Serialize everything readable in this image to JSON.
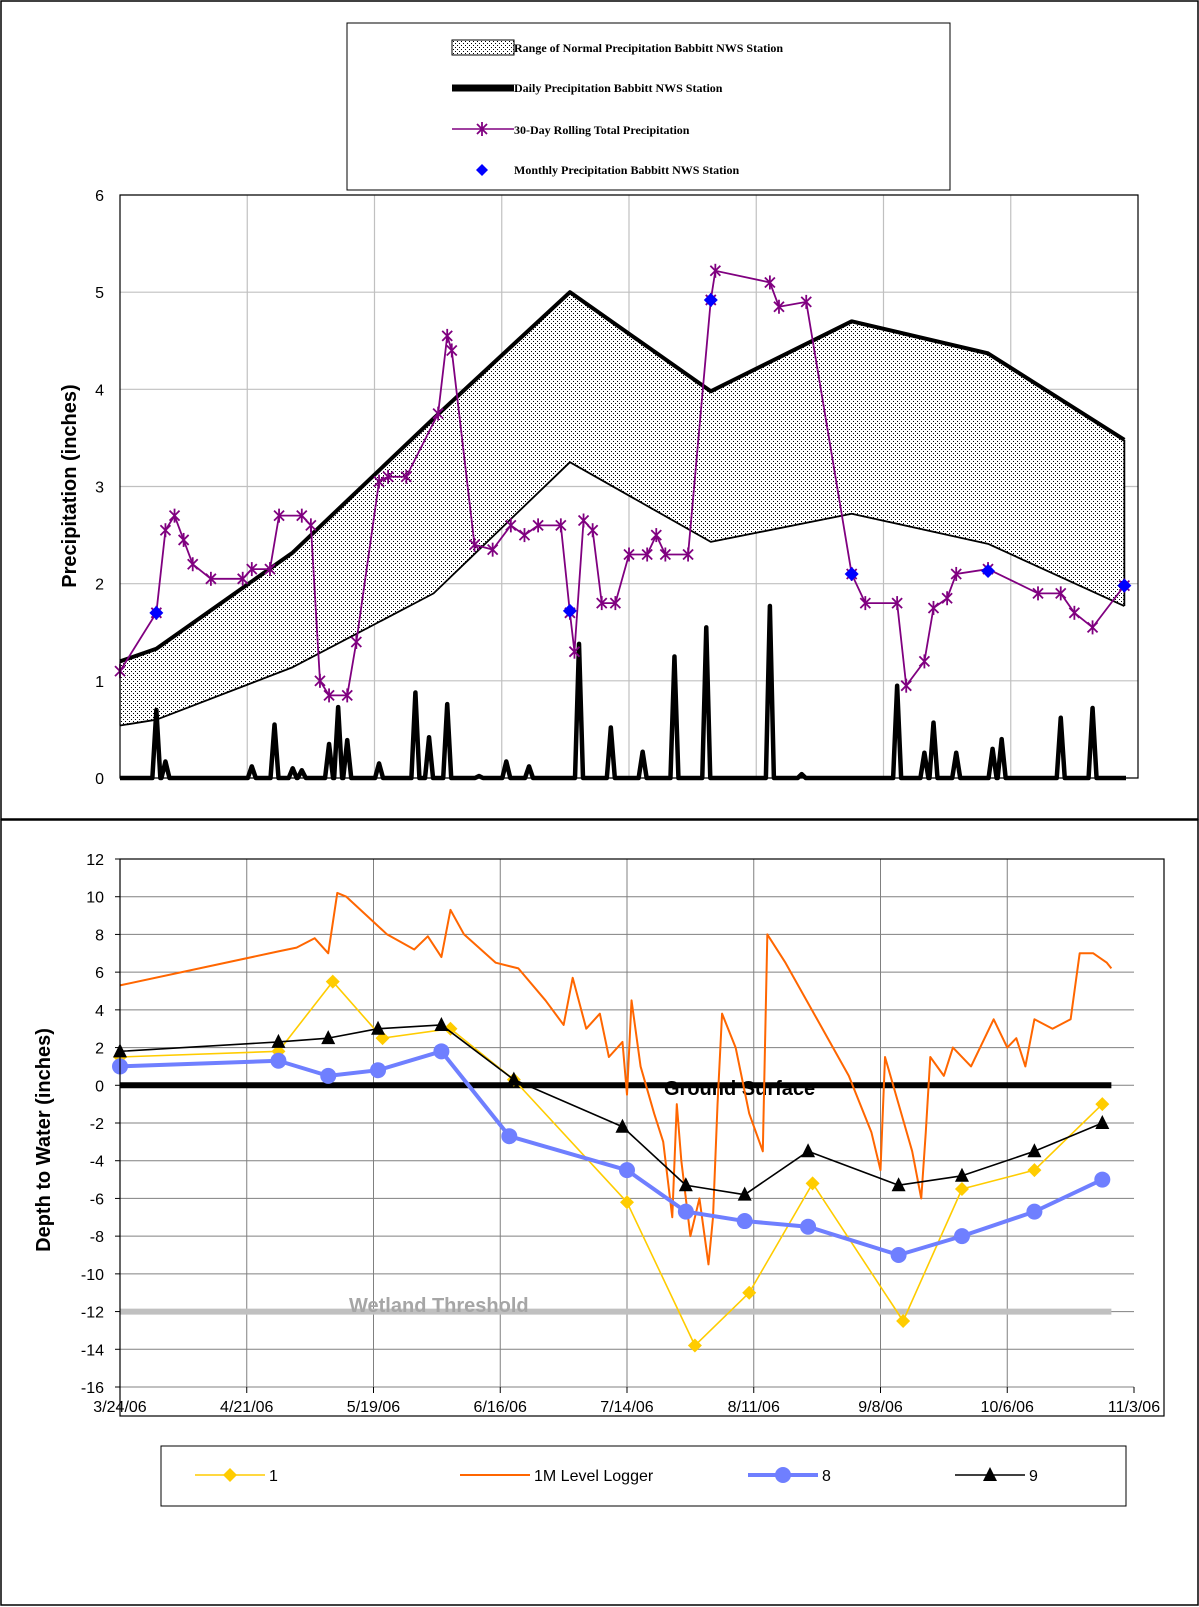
{
  "chart_data": [
    {
      "type": "line",
      "ylabel": "Precipitation (inches)",
      "ylim": [
        0,
        6
      ],
      "yticks": [
        "0",
        "1",
        "2",
        "3",
        "4",
        "5",
        "6"
      ],
      "grid": true,
      "legend_position": "top",
      "legend": [
        {
          "label": "Range of Normal Precipitation Babbitt NWS Station",
          "icon": "dotted-box"
        },
        {
          "label": "Daily Precipitation Babbitt NWS Station",
          "icon": "thick-line"
        },
        {
          "label": "30-Day Rolling Total Precipitation",
          "icon": "star-line"
        },
        {
          "label": "Monthly Precipitation Babbitt NWS Station",
          "icon": "diamond"
        }
      ],
      "colors": {
        "band": "#000000",
        "daily": "#000000",
        "rolling": "#800080",
        "monthly": "#0000ff"
      },
      "x_start": "2006-03-24",
      "x_end": "2006-11-03",
      "normal_range": {
        "x": [
          "2006-03-24",
          "2006-04-01",
          "2006-05-01",
          "2006-06-01",
          "2006-07-01",
          "2006-08-01",
          "2006-09-01",
          "2006-10-01",
          "2006-10-31"
        ],
        "upper": [
          1.2,
          1.33,
          2.32,
          3.7,
          5.0,
          3.98,
          4.7,
          4.37,
          3.48
        ],
        "lower": [
          0.54,
          0.6,
          1.14,
          1.9,
          3.25,
          2.43,
          2.72,
          2.41,
          1.77
        ]
      },
      "daily_precip_series": [
        {
          "x": "2006-04-01",
          "value": 0.7
        },
        {
          "x": "2006-04-03",
          "value": 0.17
        },
        {
          "x": "2006-04-22",
          "value": 0.12
        },
        {
          "x": "2006-04-27",
          "value": 0.55
        },
        {
          "x": "2006-05-01",
          "value": 0.1
        },
        {
          "x": "2006-05-03",
          "value": 0.08
        },
        {
          "x": "2006-05-09",
          "value": 0.35
        },
        {
          "x": "2006-05-11",
          "value": 0.73
        },
        {
          "x": "2006-05-13",
          "value": 0.39
        },
        {
          "x": "2006-05-20",
          "value": 0.15
        },
        {
          "x": "2006-05-28",
          "value": 0.88
        },
        {
          "x": "2006-05-31",
          "value": 0.42
        },
        {
          "x": "2006-06-04",
          "value": 0.76
        },
        {
          "x": "2006-06-11",
          "value": 0.02
        },
        {
          "x": "2006-06-17",
          "value": 0.17
        },
        {
          "x": "2006-06-22",
          "value": 0.12
        },
        {
          "x": "2006-07-03",
          "value": 1.38
        },
        {
          "x": "2006-07-10",
          "value": 0.52
        },
        {
          "x": "2006-07-17",
          "value": 0.27
        },
        {
          "x": "2006-07-24",
          "value": 1.25
        },
        {
          "x": "2006-07-31",
          "value": 1.55
        },
        {
          "x": "2006-08-14",
          "value": 1.77
        },
        {
          "x": "2006-08-21",
          "value": 0.04
        },
        {
          "x": "2006-09-11",
          "value": 0.95
        },
        {
          "x": "2006-09-17",
          "value": 0.26
        },
        {
          "x": "2006-09-19",
          "value": 0.57
        },
        {
          "x": "2006-09-24",
          "value": 0.26
        },
        {
          "x": "2006-10-02",
          "value": 0.3
        },
        {
          "x": "2006-10-04",
          "value": 0.4
        },
        {
          "x": "2006-10-17",
          "value": 0.62
        },
        {
          "x": "2006-10-24",
          "value": 0.72
        }
      ],
      "rolling_30day": [
        {
          "x": "2006-03-24",
          "value": 1.1
        },
        {
          "x": "2006-04-01",
          "value": 1.7
        },
        {
          "x": "2006-04-03",
          "value": 2.55
        },
        {
          "x": "2006-04-05",
          "value": 2.7
        },
        {
          "x": "2006-04-07",
          "value": 2.45
        },
        {
          "x": "2006-04-09",
          "value": 2.2
        },
        {
          "x": "2006-04-13",
          "value": 2.05
        },
        {
          "x": "2006-04-20",
          "value": 2.05
        },
        {
          "x": "2006-04-22",
          "value": 2.15
        },
        {
          "x": "2006-04-26",
          "value": 2.15
        },
        {
          "x": "2006-04-28",
          "value": 2.7
        },
        {
          "x": "2006-05-03",
          "value": 2.7
        },
        {
          "x": "2006-05-05",
          "value": 2.6
        },
        {
          "x": "2006-05-07",
          "value": 1.0
        },
        {
          "x": "2006-05-09",
          "value": 0.85
        },
        {
          "x": "2006-05-13",
          "value": 0.85
        },
        {
          "x": "2006-05-15",
          "value": 1.4
        },
        {
          "x": "2006-05-20",
          "value": 3.05
        },
        {
          "x": "2006-05-22",
          "value": 3.1
        },
        {
          "x": "2006-05-26",
          "value": 3.1
        },
        {
          "x": "2006-06-02",
          "value": 3.75
        },
        {
          "x": "2006-06-04",
          "value": 4.55
        },
        {
          "x": "2006-06-05",
          "value": 4.4
        },
        {
          "x": "2006-06-10",
          "value": 2.4
        },
        {
          "x": "2006-06-14",
          "value": 2.35
        },
        {
          "x": "2006-06-18",
          "value": 2.6
        },
        {
          "x": "2006-06-21",
          "value": 2.5
        },
        {
          "x": "2006-06-24",
          "value": 2.6
        },
        {
          "x": "2006-06-29",
          "value": 2.6
        },
        {
          "x": "2006-07-01",
          "value": 1.7
        },
        {
          "x": "2006-07-02",
          "value": 1.3
        },
        {
          "x": "2006-07-04",
          "value": 2.65
        },
        {
          "x": "2006-07-06",
          "value": 2.55
        },
        {
          "x": "2006-07-08",
          "value": 1.8
        },
        {
          "x": "2006-07-11",
          "value": 1.8
        },
        {
          "x": "2006-07-14",
          "value": 2.3
        },
        {
          "x": "2006-07-18",
          "value": 2.3
        },
        {
          "x": "2006-07-20",
          "value": 2.5
        },
        {
          "x": "2006-07-22",
          "value": 2.3
        },
        {
          "x": "2006-07-27",
          "value": 2.3
        },
        {
          "x": "2006-08-01",
          "value": 4.92
        },
        {
          "x": "2006-08-02",
          "value": 5.22
        },
        {
          "x": "2006-08-14",
          "value": 5.1
        },
        {
          "x": "2006-08-16",
          "value": 4.85
        },
        {
          "x": "2006-08-22",
          "value": 4.9
        },
        {
          "x": "2006-09-01",
          "value": 2.1
        },
        {
          "x": "2006-09-04",
          "value": 1.8
        },
        {
          "x": "2006-09-11",
          "value": 1.8
        },
        {
          "x": "2006-09-13",
          "value": 0.95
        },
        {
          "x": "2006-09-17",
          "value": 1.2
        },
        {
          "x": "2006-09-19",
          "value": 1.75
        },
        {
          "x": "2006-09-22",
          "value": 1.85
        },
        {
          "x": "2006-09-24",
          "value": 2.1
        },
        {
          "x": "2006-10-01",
          "value": 2.15
        },
        {
          "x": "2006-10-12",
          "value": 1.9
        },
        {
          "x": "2006-10-17",
          "value": 1.9
        },
        {
          "x": "2006-10-20",
          "value": 1.7
        },
        {
          "x": "2006-10-24",
          "value": 1.55
        },
        {
          "x": "2006-10-31",
          "value": 1.98
        }
      ],
      "monthly": [
        {
          "x": "2006-04-01",
          "value": 1.7
        },
        {
          "x": "2006-07-01",
          "value": 1.72
        },
        {
          "x": "2006-08-01",
          "value": 4.92
        },
        {
          "x": "2006-09-01",
          "value": 2.1
        },
        {
          "x": "2006-10-01",
          "value": 2.13
        },
        {
          "x": "2006-10-31",
          "value": 1.98
        }
      ]
    },
    {
      "type": "line",
      "ylabel": "Depth to Water (inches)",
      "ylim": [
        -16,
        12
      ],
      "yticks": [
        "-16",
        "-14",
        "-12",
        "-10",
        "-8",
        "-6",
        "-4",
        "-2",
        "0",
        "2",
        "4",
        "6",
        "8",
        "10",
        "12"
      ],
      "xticks": [
        "3/24/06",
        "4/21/06",
        "5/19/06",
        "6/16/06",
        "7/14/06",
        "8/11/06",
        "9/8/06",
        "10/6/06",
        "11/3/06"
      ],
      "xlim": [
        "2006-03-24",
        "2006-11-03"
      ],
      "grid": true,
      "legend_position": "bottom",
      "annotations": {
        "ground_surface": "Ground Surface",
        "wetland_threshold": "Wetland Threshold"
      },
      "reference_lines": [
        {
          "name": "Ground Surface",
          "y": 0,
          "color": "#000000"
        },
        {
          "name": "Wetland Threshold",
          "y": -12,
          "color": "#c0c0c0"
        }
      ],
      "series": [
        {
          "name": "1",
          "color": "#ffcc00",
          "marker": "diamond",
          "points": [
            [
              "2006-03-24",
              1.5
            ],
            [
              "2006-04-28",
              1.8
            ],
            [
              "2006-05-10",
              5.5
            ],
            [
              "2006-05-21",
              2.5
            ],
            [
              "2006-06-05",
              3.0
            ],
            [
              "2006-06-19",
              0.3
            ],
            [
              "2006-07-14",
              -6.2
            ],
            [
              "2006-07-29",
              -13.8
            ],
            [
              "2006-08-10",
              -11.0
            ],
            [
              "2006-08-24",
              -5.2
            ],
            [
              "2006-09-13",
              -12.5
            ],
            [
              "2006-09-26",
              -5.5
            ],
            [
              "2006-10-12",
              -4.5
            ],
            [
              "2006-10-27",
              -1.0
            ]
          ]
        },
        {
          "name": "1M Level Logger",
          "color": "#ff6600",
          "marker": "none",
          "points": [
            [
              "2006-03-24",
              5.3
            ],
            [
              "2006-04-28",
              7.1
            ],
            [
              "2006-05-02",
              7.3
            ],
            [
              "2006-05-06",
              7.8
            ],
            [
              "2006-05-09",
              7.0
            ],
            [
              "2006-05-11",
              10.2
            ],
            [
              "2006-05-13",
              10.0
            ],
            [
              "2006-05-22",
              8.0
            ],
            [
              "2006-05-28",
              7.2
            ],
            [
              "2006-05-31",
              7.9
            ],
            [
              "2006-06-03",
              6.8
            ],
            [
              "2006-06-05",
              9.3
            ],
            [
              "2006-06-08",
              8.0
            ],
            [
              "2006-06-15",
              6.5
            ],
            [
              "2006-06-20",
              6.2
            ],
            [
              "2006-06-26",
              4.5
            ],
            [
              "2006-06-30",
              3.2
            ],
            [
              "2006-07-02",
              5.7
            ],
            [
              "2006-07-05",
              3.0
            ],
            [
              "2006-07-08",
              3.8
            ],
            [
              "2006-07-10",
              1.5
            ],
            [
              "2006-07-13",
              2.3
            ],
            [
              "2006-07-14",
              -0.5
            ],
            [
              "2006-07-15",
              4.5
            ],
            [
              "2006-07-17",
              1.0
            ],
            [
              "2006-07-20",
              -1.5
            ],
            [
              "2006-07-22",
              -3.0
            ],
            [
              "2006-07-24",
              -7.0
            ],
            [
              "2006-07-25",
              -1.0
            ],
            [
              "2006-07-26",
              -4.0
            ],
            [
              "2006-07-28",
              -8.0
            ],
            [
              "2006-07-30",
              -6.0
            ],
            [
              "2006-08-01",
              -9.5
            ],
            [
              "2006-08-02",
              -7.0
            ],
            [
              "2006-08-03",
              -1.0
            ],
            [
              "2006-08-04",
              3.8
            ],
            [
              "2006-08-07",
              2.0
            ],
            [
              "2006-08-10",
              -1.5
            ],
            [
              "2006-08-13",
              -3.5
            ],
            [
              "2006-08-14",
              8.0
            ],
            [
              "2006-08-18",
              6.5
            ],
            [
              "2006-08-25",
              3.5
            ],
            [
              "2006-09-01",
              0.5
            ],
            [
              "2006-09-06",
              -2.5
            ],
            [
              "2006-09-08",
              -4.5
            ],
            [
              "2006-09-09",
              1.5
            ],
            [
              "2006-09-12",
              -1.0
            ],
            [
              "2006-09-15",
              -3.5
            ],
            [
              "2006-09-17",
              -6.0
            ],
            [
              "2006-09-18",
              -2.5
            ],
            [
              "2006-09-19",
              1.5
            ],
            [
              "2006-09-22",
              0.5
            ],
            [
              "2006-09-24",
              2.0
            ],
            [
              "2006-09-28",
              1.0
            ],
            [
              "2006-10-01",
              2.5
            ],
            [
              "2006-10-03",
              3.5
            ],
            [
              "2006-10-06",
              2.0
            ],
            [
              "2006-10-08",
              2.5
            ],
            [
              "2006-10-10",
              1.0
            ],
            [
              "2006-10-12",
              3.5
            ],
            [
              "2006-10-16",
              3.0
            ],
            [
              "2006-10-20",
              3.5
            ],
            [
              "2006-10-22",
              7.0
            ],
            [
              "2006-10-25",
              7.0
            ],
            [
              "2006-10-28",
              6.5
            ],
            [
              "2006-10-29",
              6.2
            ]
          ]
        },
        {
          "name": "8",
          "color": "#6f7fff",
          "marker": "circle",
          "points": [
            [
              "2006-03-24",
              1.0
            ],
            [
              "2006-04-28",
              1.3
            ],
            [
              "2006-05-09",
              0.5
            ],
            [
              "2006-05-20",
              0.8
            ],
            [
              "2006-06-03",
              1.8
            ],
            [
              "2006-06-18",
              -2.7
            ],
            [
              "2006-07-14",
              -4.5
            ],
            [
              "2006-07-27",
              -6.7
            ],
            [
              "2006-08-09",
              -7.2
            ],
            [
              "2006-08-23",
              -7.5
            ],
            [
              "2006-09-12",
              -9.0
            ],
            [
              "2006-09-26",
              -8.0
            ],
            [
              "2006-10-12",
              -6.7
            ],
            [
              "2006-10-27",
              -5.0
            ]
          ]
        },
        {
          "name": "9",
          "color": "#000000",
          "marker": "triangle",
          "points": [
            [
              "2006-03-24",
              1.8
            ],
            [
              "2006-04-28",
              2.3
            ],
            [
              "2006-05-09",
              2.5
            ],
            [
              "2006-05-20",
              3.0
            ],
            [
              "2006-06-03",
              3.2
            ],
            [
              "2006-06-19",
              0.3
            ],
            [
              "2006-07-13",
              -2.2
            ],
            [
              "2006-07-27",
              -5.3
            ],
            [
              "2006-08-09",
              -5.8
            ],
            [
              "2006-08-23",
              -3.5
            ],
            [
              "2006-09-12",
              -5.3
            ],
            [
              "2006-09-26",
              -4.8
            ],
            [
              "2006-10-12",
              -3.5
            ],
            [
              "2006-10-27",
              -2.0
            ]
          ]
        }
      ]
    }
  ]
}
